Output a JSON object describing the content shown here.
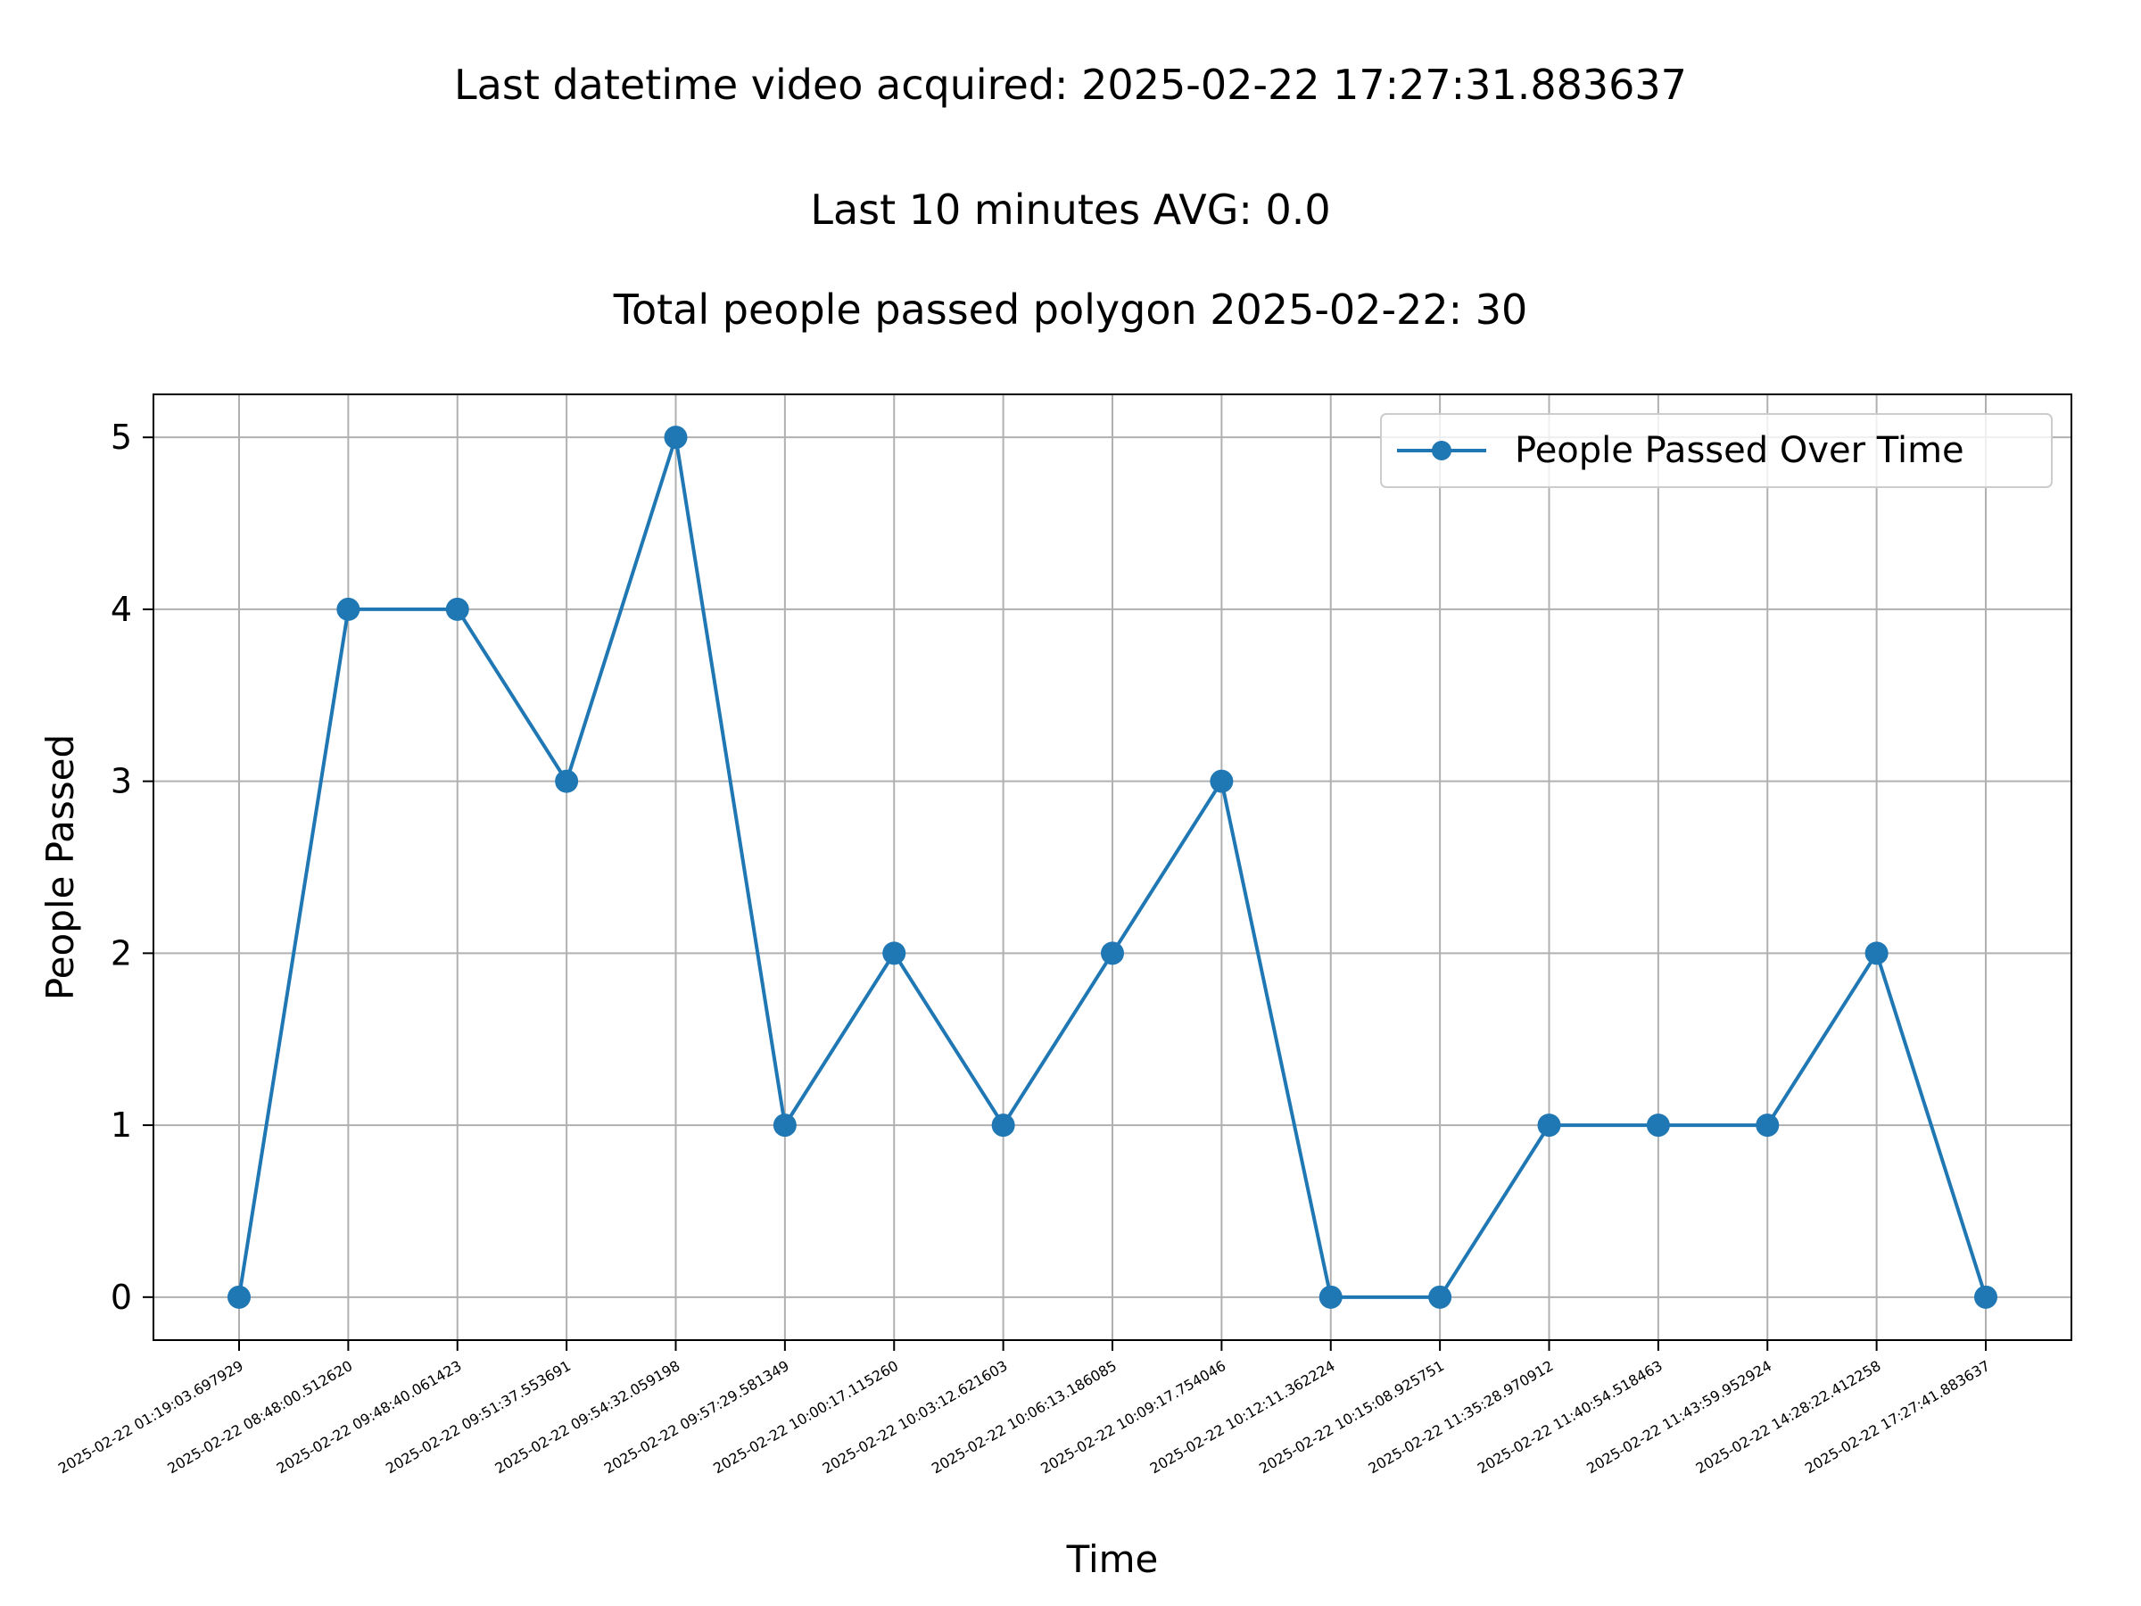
{
  "chart_data": {
    "type": "line",
    "title_lines": [
      "Last datetime video acquired: 2025-02-22 17:27:31.883637",
      "Last 10 minutes AVG: 0.0",
      "Total people passed polygon 2025-02-22: 30"
    ],
    "xlabel": "Time",
    "ylabel": "People Passed",
    "categories": [
      "2025-02-22 01:19:03.697929",
      "2025-02-22 08:48:00.512620",
      "2025-02-22 09:48:40.061423",
      "2025-02-22 09:51:37.553691",
      "2025-02-22 09:54:32.059198",
      "2025-02-22 09:57:29.581349",
      "2025-02-22 10:00:17.115260",
      "2025-02-22 10:03:12.621603",
      "2025-02-22 10:06:13.186085",
      "2025-02-22 10:09:17.754046",
      "2025-02-22 10:12:11.362224",
      "2025-02-22 10:15:08.925751",
      "2025-02-22 11:35:28.970912",
      "2025-02-22 11:40:54.518463",
      "2025-02-22 11:43:59.952924",
      "2025-02-22 14:28:22.412258",
      "2025-02-22 17:27:41.883637"
    ],
    "series": [
      {
        "name": "People Passed Over Time",
        "values": [
          0,
          4,
          4,
          3,
          5,
          1,
          2,
          1,
          2,
          3,
          0,
          0,
          1,
          1,
          1,
          2,
          0
        ],
        "color": "#1f77b4",
        "marker": "circle"
      }
    ],
    "yticks": [
      0,
      1,
      2,
      3,
      4,
      5
    ],
    "ylim": [
      -0.25,
      5.25
    ],
    "grid": true,
    "legend_position": "top-right"
  }
}
